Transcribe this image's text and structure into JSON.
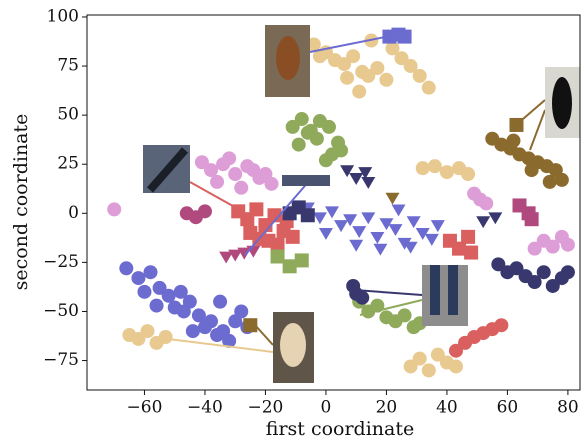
{
  "chart_data": {
    "type": "scatter",
    "xlabel": "first coordinate",
    "ylabel": "second coordinate",
    "xlim": [
      -79,
      84
    ],
    "ylim": [
      -90,
      101
    ],
    "xticks": [
      {
        "value": -60,
        "label": "−60"
      },
      {
        "value": -40,
        "label": "−40"
      },
      {
        "value": -20,
        "label": "−20"
      },
      0,
      20,
      40,
      60,
      80
    ],
    "yticks": [
      {
        "value": -75,
        "label": "−75"
      },
      {
        "value": -50,
        "label": "−50"
      },
      {
        "value": -25,
        "label": "−25"
      },
      0,
      25,
      50,
      75,
      100
    ],
    "series": [
      {
        "color": "#6b6bd0",
        "marker": "circle",
        "x": [
          -66,
          -62,
          -58,
          -55,
          -52,
          -50,
          -47,
          -45,
          -42,
          -40,
          -38,
          -36,
          -34,
          -32,
          -30,
          -28,
          -60,
          -56,
          -44,
          -48,
          -35,
          -26
        ],
        "y": [
          -28,
          -33,
          -30,
          -38,
          -42,
          -48,
          -50,
          -45,
          -52,
          -58,
          -55,
          -62,
          -60,
          -65,
          -55,
          -50,
          -40,
          -47,
          -60,
          -40,
          -45,
          -58
        ]
      },
      {
        "color": "#6b6bd0",
        "marker": "triangle",
        "x": [
          -6,
          -2,
          2,
          5,
          8,
          11,
          14,
          17,
          20,
          23,
          26,
          29,
          32,
          35,
          37,
          10,
          18,
          24,
          0,
          28
        ],
        "y": [
          3,
          -2,
          1,
          -6,
          -3,
          -9,
          -2,
          -12,
          -5,
          -8,
          -15,
          -4,
          -10,
          -13,
          -6,
          -16,
          -18,
          2,
          -10,
          -17
        ]
      },
      {
        "color": "#e8c990",
        "marker": "circle",
        "x": [
          -4,
          0,
          3,
          6,
          9,
          12,
          14,
          17,
          20,
          25,
          28,
          31,
          34,
          7,
          11,
          22,
          -2,
          15
        ],
        "y": [
          86,
          82,
          78,
          76,
          80,
          72,
          70,
          74,
          68,
          79,
          75,
          70,
          64,
          69,
          62,
          84,
          80,
          88
        ]
      },
      {
        "color": "#8faa5a",
        "marker": "circle",
        "x": [
          -11,
          -8,
          -5,
          -2,
          1,
          4,
          -9,
          -3,
          2,
          5,
          -6,
          0
        ],
        "y": [
          44,
          48,
          42,
          47,
          44,
          36,
          35,
          38,
          30,
          32,
          41,
          27
        ]
      },
      {
        "color": "#dd9ed8",
        "marker": "circle",
        "x": [
          -41,
          -38,
          -34,
          -30,
          -26,
          -22,
          -18,
          -36,
          -28,
          -20,
          -32,
          -24
        ],
        "y": [
          26,
          22,
          25,
          20,
          24,
          18,
          15,
          16,
          13,
          20,
          28,
          22
        ]
      },
      {
        "color": "#d9605f",
        "marker": "square",
        "x": [
          -29,
          -26,
          -23,
          -20,
          -17,
          -14,
          -11,
          -25,
          -19,
          -13,
          -22,
          -16
        ],
        "y": [
          1,
          -3,
          2,
          -6,
          -1,
          -9,
          -12,
          -10,
          -14,
          -4,
          -13,
          -16
        ]
      },
      {
        "color": "#8b6a2e",
        "marker": "circle",
        "x": [
          55,
          58,
          61,
          64,
          67,
          70,
          73,
          76,
          78,
          62,
          68,
          74
        ],
        "y": [
          38,
          35,
          33,
          30,
          28,
          26,
          24,
          22,
          17,
          37,
          22,
          16
        ]
      },
      {
        "color": "#e8c990",
        "marker": "circle",
        "x": [
          -65,
          -62,
          -59,
          -56,
          -53
        ],
        "y": [
          -62,
          -64,
          -60,
          -66,
          -63
        ]
      },
      {
        "color": "#e8c990",
        "marker": "circle",
        "x": [
          28,
          31,
          34,
          37,
          40,
          43
        ],
        "y": [
          -78,
          -74,
          -80,
          -72,
          -76,
          -78
        ]
      },
      {
        "color": "#8faa5a",
        "marker": "circle",
        "x": [
          11,
          14,
          17,
          20,
          23,
          26,
          29,
          31
        ],
        "y": [
          -45,
          -50,
          -47,
          -53,
          -55,
          -52,
          -58,
          -56
        ]
      },
      {
        "color": "#d9605f",
        "marker": "circle",
        "x": [
          43,
          46,
          49,
          52,
          55,
          58
        ],
        "y": [
          -70,
          -66,
          -63,
          -61,
          -59,
          -57
        ]
      },
      {
        "color": "#38386e",
        "marker": "circle",
        "x": [
          57,
          60,
          63,
          66,
          69,
          72,
          75,
          78,
          80
        ],
        "y": [
          -26,
          -30,
          -28,
          -32,
          -35,
          -30,
          -37,
          -33,
          -30
        ]
      },
      {
        "color": "#dd9ed8",
        "marker": "circle",
        "x": [
          69,
          72,
          75,
          78,
          80
        ],
        "y": [
          -18,
          -14,
          -17,
          -12,
          -16
        ]
      },
      {
        "color": "#d9605f",
        "marker": "square",
        "x": [
          41,
          44,
          47,
          48
        ],
        "y": [
          -14,
          -18,
          -12,
          -20
        ]
      },
      {
        "color": "#38386e",
        "marker": "triangle",
        "x": [
          7,
          10,
          13,
          14
        ],
        "y": [
          22,
          18,
          21,
          16
        ]
      },
      {
        "color": "#b04a7e",
        "marker": "circle",
        "x": [
          -46,
          -43,
          -40
        ],
        "y": [
          0,
          -2,
          1
        ]
      },
      {
        "color": "#e8c990",
        "marker": "circle",
        "x": [
          32,
          36,
          40,
          44,
          47
        ],
        "y": [
          23,
          24,
          21,
          23,
          20
        ]
      },
      {
        "color": "#38386e",
        "marker": "square",
        "x": [
          -12,
          -9,
          -6
        ],
        "y": [
          0,
          3,
          -1
        ]
      },
      {
        "color": "#8faa5a",
        "marker": "square",
        "x": [
          -16,
          -12,
          -8
        ],
        "y": [
          -22,
          -27,
          -24
        ]
      },
      {
        "color": "#38386e",
        "marker": "circle",
        "x": [
          9,
          10,
          12
        ],
        "y": [
          -37,
          -41,
          -43
        ]
      },
      {
        "color": "#dd9ed8",
        "marker": "circle",
        "x": [
          -70
        ],
        "y": [
          2
        ]
      },
      {
        "color": "#b04a7e",
        "marker": "square",
        "x": [
          64,
          67,
          68
        ],
        "y": [
          4,
          0,
          -3
        ]
      },
      {
        "color": "#8b6a2e",
        "marker": "square",
        "x": [
          -25
        ],
        "y": [
          -57
        ]
      },
      {
        "color": "#8b6a2e",
        "marker": "triangle",
        "x": [
          22
        ],
        "y": [
          8
        ]
      },
      {
        "color": "#b04a7e",
        "marker": "triangle",
        "x": [
          -33,
          -30,
          -27,
          -24
        ],
        "y": [
          -22,
          -21,
          -20,
          -19
        ]
      },
      {
        "color": "#6b6bd0",
        "marker": "square",
        "x": [
          21,
          24,
          26
        ],
        "y": [
          90,
          91,
          90
        ]
      },
      {
        "color": "#8b6a2e",
        "marker": "square",
        "x": [
          63
        ],
        "y": [
          45
        ]
      },
      {
        "color": "#dd9ed8",
        "marker": "circle",
        "x": [
          49,
          51,
          53
        ],
        "y": [
          10,
          7,
          5
        ]
      },
      {
        "color": "#38386e",
        "marker": "triangle",
        "x": [
          56,
          52
        ],
        "y": [
          -2,
          -4
        ]
      }
    ]
  }
}
